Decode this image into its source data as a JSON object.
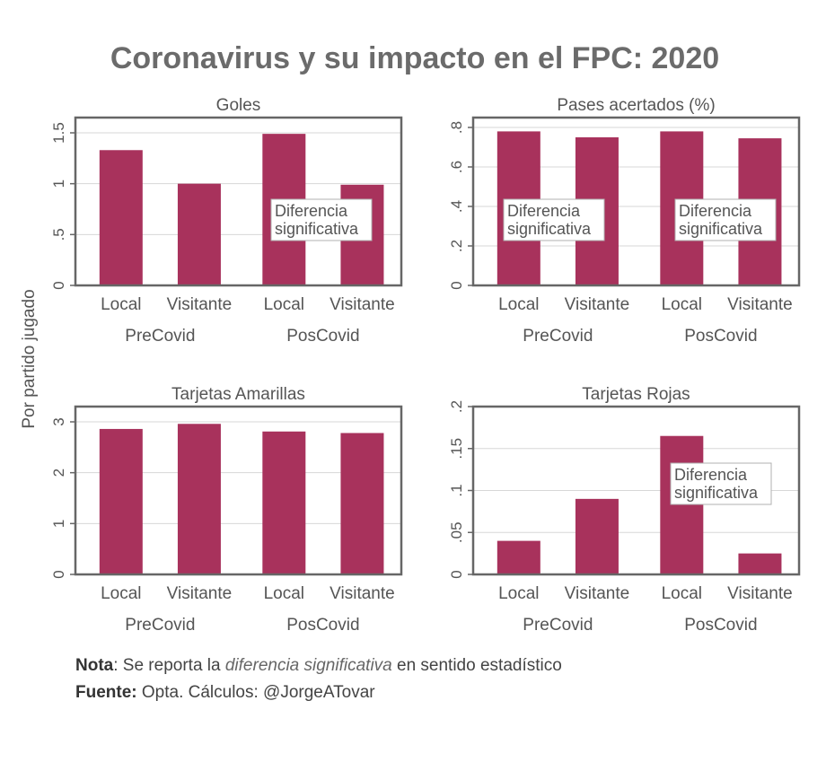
{
  "title": "Coronavirus y su impacto en el FPC: 2020",
  "y_axis_label": "Por partido jugado",
  "colors": {
    "bar": "#a8325c",
    "frame": "#666666",
    "grid": "#d7d7d7",
    "text": "#555555",
    "title": "#6b6b6b"
  },
  "chart_data": [
    {
      "type": "bar",
      "title": "Goles",
      "categories": [
        "Local",
        "Visitante",
        "Local",
        "Visitante"
      ],
      "groups": [
        "PreCovid",
        "PosCovid"
      ],
      "values": [
        1.33,
        1.0,
        1.49,
        0.99
      ],
      "ylim": [
        0,
        1.65
      ],
      "yticks": [
        0,
        0.5,
        1,
        1.5
      ],
      "ytick_labels": [
        "0",
        ".5",
        "1",
        "1.5"
      ],
      "annotation": "Diferencia significativa",
      "annotation_lines": [
        "Diferencia",
        "significativa"
      ],
      "annotation_at": "PosCovid"
    },
    {
      "type": "bar",
      "title": "Pases acertados (%)",
      "categories": [
        "Local",
        "Visitante",
        "Local",
        "Visitante"
      ],
      "groups": [
        "PreCovid",
        "PosCovid"
      ],
      "values": [
        0.78,
        0.75,
        0.78,
        0.745
      ],
      "ylim": [
        0,
        0.85
      ],
      "yticks": [
        0,
        0.2,
        0.4,
        0.6,
        0.8
      ],
      "ytick_labels": [
        "0",
        ".2",
        ".4",
        ".6",
        ".8"
      ],
      "annotation": "Diferencia significativa",
      "annotation_lines": [
        "Diferencia",
        "significativa"
      ],
      "annotation_at": "PreCovid and PosCovid"
    },
    {
      "type": "bar",
      "title": "Tarjetas Amarillas",
      "categories": [
        "Local",
        "Visitante",
        "Local",
        "Visitante"
      ],
      "groups": [
        "PreCovid",
        "PosCovid"
      ],
      "values": [
        2.86,
        2.96,
        2.81,
        2.78
      ],
      "ylim": [
        0,
        3.3
      ],
      "yticks": [
        0,
        1,
        2,
        3
      ],
      "ytick_labels": [
        "0",
        "1",
        "2",
        "3"
      ],
      "annotation": null
    },
    {
      "type": "bar",
      "title": "Tarjetas Rojas",
      "categories": [
        "Local",
        "Visitante",
        "Local",
        "Visitante"
      ],
      "groups": [
        "PreCovid",
        "PosCovid"
      ],
      "values": [
        0.04,
        0.09,
        0.165,
        0.025
      ],
      "ylim": [
        0,
        0.2
      ],
      "yticks": [
        0,
        0.05,
        0.1,
        0.15,
        0.2
      ],
      "ytick_labels": [
        "0",
        ".05",
        ".1",
        ".15",
        ".2"
      ],
      "annotation": "Diferencia significativa",
      "annotation_lines": [
        "Diferencia",
        "significativa"
      ],
      "annotation_at": "PosCovid Local"
    }
  ],
  "note": {
    "label": "Nota",
    "text_before": ": Se reporta la ",
    "italic": "diferencia significativa",
    "text_after": " en sentido estadístico"
  },
  "source": {
    "label": "Fuente:",
    "text": " Opta. Cálculos: @JorgeATovar"
  }
}
